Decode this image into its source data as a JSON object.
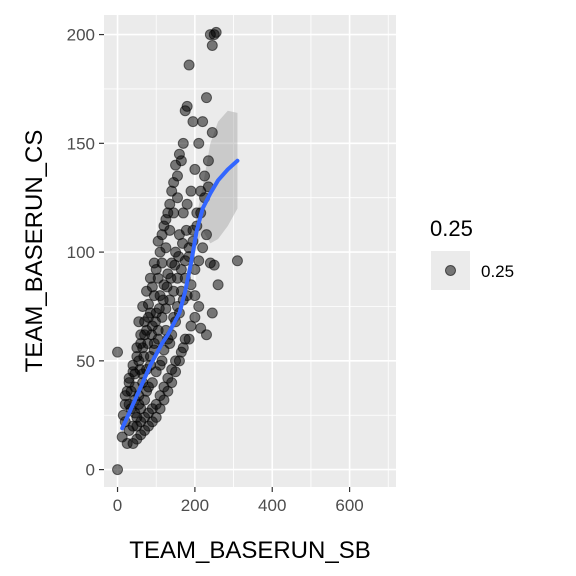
{
  "chart_data": {
    "type": "scatter",
    "title": "",
    "xlabel": "TEAM_BASERUN_SB",
    "ylabel": "TEAM_BASERUN_CS",
    "xlim": [
      -35,
      720
    ],
    "ylim": [
      -8,
      209
    ],
    "x_ticks": [
      0,
      200,
      400,
      600
    ],
    "y_ticks": [
      0,
      50,
      100,
      150,
      200
    ],
    "x_minor": [
      100,
      300,
      500,
      700
    ],
    "y_minor": [
      25,
      75,
      125,
      175
    ],
    "grid": true,
    "legend": {
      "title": "0.25",
      "label": "0.25",
      "position": "right"
    },
    "colors": {
      "panel": "#ebebeb",
      "grid": "#ffffff",
      "points": "#000000",
      "smooth": "#3366ff",
      "ribbon": "#999999"
    },
    "point_alpha": 0.5,
    "points": [
      [
        0,
        0
      ],
      [
        0,
        54
      ],
      [
        12,
        15
      ],
      [
        15,
        25
      ],
      [
        20,
        34
      ],
      [
        25,
        12
      ],
      [
        30,
        40
      ],
      [
        35,
        28
      ],
      [
        40,
        45
      ],
      [
        45,
        38
      ],
      [
        50,
        52
      ],
      [
        55,
        30
      ],
      [
        60,
        58
      ],
      [
        65,
        44
      ],
      [
        70,
        62
      ],
      [
        75,
        36
      ],
      [
        80,
        70
      ],
      [
        85,
        48
      ],
      [
        90,
        66
      ],
      [
        95,
        55
      ],
      [
        100,
        72
      ],
      [
        105,
        60
      ],
      [
        110,
        80
      ],
      [
        115,
        50
      ],
      [
        120,
        85
      ],
      [
        125,
        64
      ],
      [
        130,
        90
      ],
      [
        135,
        58
      ],
      [
        140,
        95
      ],
      [
        145,
        70
      ],
      [
        150,
        100
      ],
      [
        155,
        75
      ],
      [
        160,
        108
      ],
      [
        165,
        82
      ],
      [
        170,
        118
      ],
      [
        175,
        88
      ],
      [
        180,
        122
      ],
      [
        185,
        98
      ],
      [
        190,
        128
      ],
      [
        195,
        105
      ],
      [
        200,
        138
      ],
      [
        205,
        112
      ],
      [
        210,
        150
      ],
      [
        215,
        118
      ],
      [
        220,
        160
      ],
      [
        225,
        125
      ],
      [
        230,
        171
      ],
      [
        235,
        130
      ],
      [
        240,
        200
      ],
      [
        245,
        195
      ],
      [
        250,
        200
      ],
      [
        255,
        201
      ],
      [
        185,
        186
      ],
      [
        180,
        167
      ],
      [
        175,
        165
      ],
      [
        195,
        160
      ],
      [
        160,
        145
      ],
      [
        150,
        140
      ],
      [
        140,
        128
      ],
      [
        130,
        118
      ],
      [
        120,
        112
      ],
      [
        110,
        100
      ],
      [
        100,
        92
      ],
      [
        90,
        84
      ],
      [
        80,
        76
      ],
      [
        70,
        68
      ],
      [
        60,
        62
      ],
      [
        50,
        56
      ],
      [
        40,
        48
      ],
      [
        30,
        42
      ],
      [
        25,
        36
      ],
      [
        20,
        30
      ],
      [
        20,
        22
      ],
      [
        30,
        18
      ],
      [
        40,
        20
      ],
      [
        50,
        24
      ],
      [
        60,
        28
      ],
      [
        70,
        32
      ],
      [
        80,
        38
      ],
      [
        90,
        40
      ],
      [
        100,
        45
      ],
      [
        110,
        48
      ],
      [
        120,
        55
      ],
      [
        130,
        60
      ],
      [
        140,
        62
      ],
      [
        150,
        68
      ],
      [
        160,
        72
      ],
      [
        170,
        78
      ],
      [
        180,
        80
      ],
      [
        190,
        85
      ],
      [
        200,
        92
      ],
      [
        210,
        96
      ],
      [
        220,
        102
      ],
      [
        230,
        108
      ],
      [
        240,
        95
      ],
      [
        250,
        94
      ],
      [
        310,
        96
      ],
      [
        260,
        85
      ],
      [
        245,
        72
      ],
      [
        230,
        62
      ],
      [
        215,
        65
      ],
      [
        200,
        70
      ],
      [
        185,
        60
      ],
      [
        170,
        56
      ],
      [
        160,
        50
      ],
      [
        150,
        45
      ],
      [
        140,
        40
      ],
      [
        130,
        36
      ],
      [
        120,
        32
      ],
      [
        110,
        28
      ],
      [
        100,
        24
      ],
      [
        90,
        22
      ],
      [
        80,
        20
      ],
      [
        70,
        18
      ],
      [
        60,
        16
      ],
      [
        50,
        14
      ],
      [
        40,
        12
      ],
      [
        55,
        68
      ],
      [
        65,
        75
      ],
      [
        75,
        82
      ],
      [
        85,
        88
      ],
      [
        95,
        95
      ],
      [
        105,
        105
      ],
      [
        115,
        108
      ],
      [
        125,
        115
      ],
      [
        135,
        122
      ],
      [
        145,
        132
      ],
      [
        155,
        135
      ],
      [
        165,
        142
      ],
      [
        170,
        150
      ],
      [
        155,
        125
      ],
      [
        145,
        118
      ],
      [
        135,
        110
      ],
      [
        125,
        102
      ],
      [
        115,
        95
      ],
      [
        105,
        88
      ],
      [
        95,
        80
      ],
      [
        85,
        72
      ],
      [
        75,
        64
      ],
      [
        65,
        56
      ],
      [
        55,
        50
      ],
      [
        45,
        44
      ],
      [
        35,
        36
      ],
      [
        30,
        30
      ],
      [
        45,
        26
      ],
      [
        55,
        34
      ],
      [
        65,
        40
      ],
      [
        75,
        46
      ],
      [
        85,
        52
      ],
      [
        95,
        58
      ],
      [
        105,
        64
      ],
      [
        115,
        70
      ],
      [
        125,
        74
      ],
      [
        135,
        78
      ],
      [
        145,
        82
      ],
      [
        155,
        88
      ],
      [
        165,
        92
      ],
      [
        175,
        96
      ],
      [
        185,
        102
      ],
      [
        195,
        110
      ],
      [
        205,
        118
      ],
      [
        215,
        128
      ],
      [
        225,
        135
      ],
      [
        235,
        142
      ],
      [
        245,
        155
      ],
      [
        200,
        80
      ],
      [
        210,
        75
      ],
      [
        190,
        66
      ],
      [
        175,
        60
      ],
      [
        165,
        54
      ],
      [
        150,
        50
      ],
      [
        140,
        46
      ],
      [
        130,
        42
      ],
      [
        120,
        38
      ],
      [
        110,
        34
      ],
      [
        100,
        30
      ],
      [
        90,
        28
      ],
      [
        80,
        26
      ],
      [
        70,
        24
      ],
      [
        60,
        22
      ],
      [
        50,
        20
      ],
      [
        45,
        32
      ],
      [
        58,
        46
      ],
      [
        68,
        52
      ],
      [
        78,
        58
      ],
      [
        88,
        62
      ],
      [
        98,
        68
      ],
      [
        108,
        74
      ],
      [
        118,
        78
      ],
      [
        128,
        84
      ],
      [
        138,
        88
      ],
      [
        148,
        94
      ],
      [
        158,
        98
      ],
      [
        168,
        104
      ],
      [
        178,
        110
      ]
    ],
    "smooth": [
      [
        12,
        19
      ],
      [
        25,
        24
      ],
      [
        40,
        30
      ],
      [
        55,
        36
      ],
      [
        70,
        42
      ],
      [
        85,
        48
      ],
      [
        100,
        53
      ],
      [
        115,
        58
      ],
      [
        130,
        62
      ],
      [
        145,
        67
      ],
      [
        160,
        72
      ],
      [
        175,
        82
      ],
      [
        190,
        95
      ],
      [
        205,
        110
      ],
      [
        220,
        120
      ],
      [
        240,
        127
      ],
      [
        260,
        133
      ],
      [
        285,
        138
      ],
      [
        310,
        142
      ]
    ],
    "ribbon_upper": [
      [
        12,
        22
      ],
      [
        25,
        26
      ],
      [
        40,
        32
      ],
      [
        55,
        38
      ],
      [
        70,
        44
      ],
      [
        85,
        50
      ],
      [
        100,
        55
      ],
      [
        115,
        60
      ],
      [
        130,
        64
      ],
      [
        145,
        70
      ],
      [
        160,
        75
      ],
      [
        175,
        86
      ],
      [
        190,
        100
      ],
      [
        205,
        117
      ],
      [
        220,
        130
      ],
      [
        240,
        150
      ],
      [
        260,
        160
      ],
      [
        285,
        165
      ],
      [
        310,
        164
      ]
    ],
    "ribbon_lower": [
      [
        12,
        16
      ],
      [
        25,
        22
      ],
      [
        40,
        28
      ],
      [
        55,
        34
      ],
      [
        70,
        40
      ],
      [
        85,
        46
      ],
      [
        100,
        51
      ],
      [
        115,
        56
      ],
      [
        130,
        60
      ],
      [
        145,
        64
      ],
      [
        160,
        69
      ],
      [
        175,
        78
      ],
      [
        190,
        90
      ],
      [
        205,
        103
      ],
      [
        220,
        110
      ],
      [
        240,
        104
      ],
      [
        260,
        106
      ],
      [
        285,
        112
      ],
      [
        310,
        120
      ]
    ]
  }
}
